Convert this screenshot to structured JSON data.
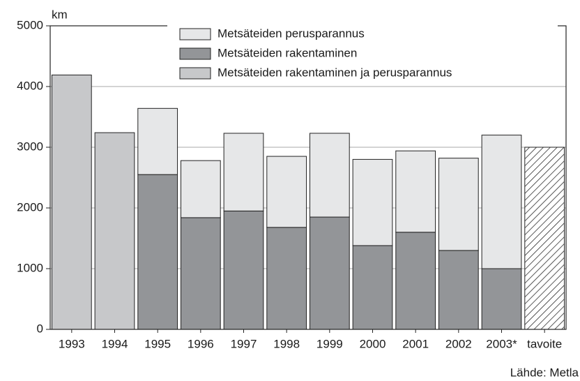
{
  "chart_data": {
    "type": "stacked-bar",
    "y_label": "km",
    "source": "Lähde: Metla",
    "categories": [
      "1993",
      "1994",
      "1995",
      "1996",
      "1997",
      "1998",
      "1999",
      "2000",
      "2001",
      "2002",
      "2003*",
      "tavoite"
    ],
    "series": [
      {
        "name": "Metsäteiden perusparannus",
        "color": "#e6e7e8",
        "values": [
          null,
          null,
          1090,
          940,
          1280,
          1170,
          1380,
          1420,
          1340,
          1520,
          2200,
          null
        ]
      },
      {
        "name": "Metsäteiden rakentaminen",
        "color": "#939598",
        "values": [
          null,
          null,
          2550,
          1840,
          1950,
          1680,
          1850,
          1380,
          1600,
          1300,
          1000,
          null
        ]
      },
      {
        "name": "Metsäteiden rakentaminen ja perusparannus",
        "color": "#c7c8ca",
        "values": [
          4190,
          3240,
          null,
          null,
          null,
          null,
          null,
          null,
          null,
          null,
          null,
          null
        ]
      },
      {
        "color": "#ffffff",
        "pattern": "hatch",
        "values": [
          null,
          null,
          null,
          null,
          null,
          null,
          null,
          null,
          null,
          null,
          null,
          3000
        ]
      }
    ],
    "ylim": [
      0,
      5000
    ],
    "yticks": [
      0,
      1000,
      2000,
      3000,
      4000,
      5000
    ],
    "grid": true
  }
}
